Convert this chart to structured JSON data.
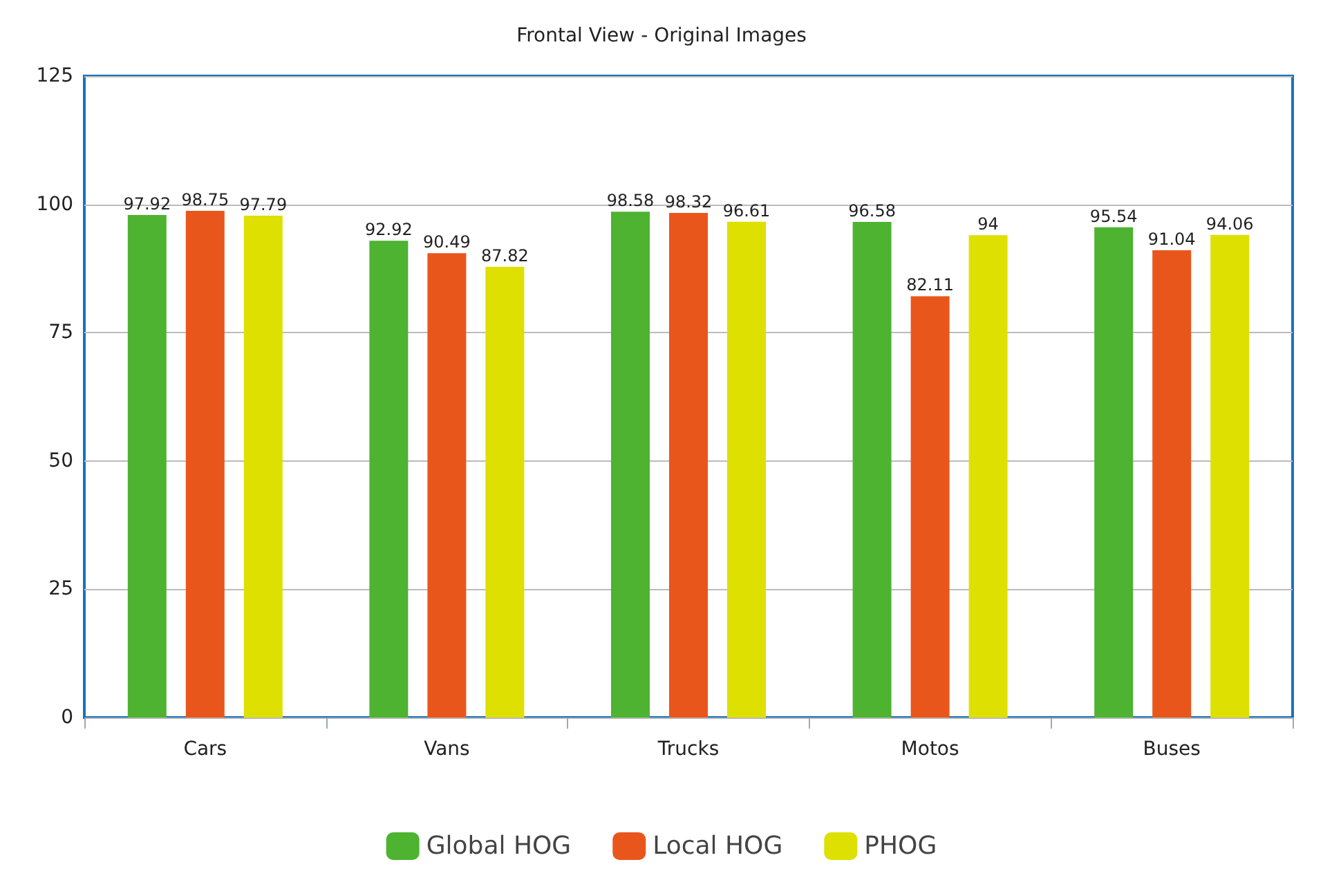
{
  "chart_data": {
    "type": "bar",
    "title": "Frontal View - Original Images",
    "categories": [
      "Cars",
      "Vans",
      "Trucks",
      "Motos",
      "Buses"
    ],
    "series": [
      {
        "name": "Global HOG",
        "color": "#4db331",
        "values": [
          97.92,
          92.92,
          98.58,
          96.58,
          95.54
        ]
      },
      {
        "name": "Local HOG",
        "color": "#e9561c",
        "values": [
          98.75,
          90.49,
          98.32,
          82.11,
          91.04
        ]
      },
      {
        "name": "PHOG",
        "color": "#dde000",
        "values": [
          97.79,
          87.82,
          96.61,
          94,
          94.06
        ]
      }
    ],
    "ylim": [
      0,
      125
    ],
    "yticks": [
      0,
      25,
      50,
      75,
      100,
      125
    ],
    "grid": "y",
    "legend": "bottom",
    "data_labels": true
  }
}
